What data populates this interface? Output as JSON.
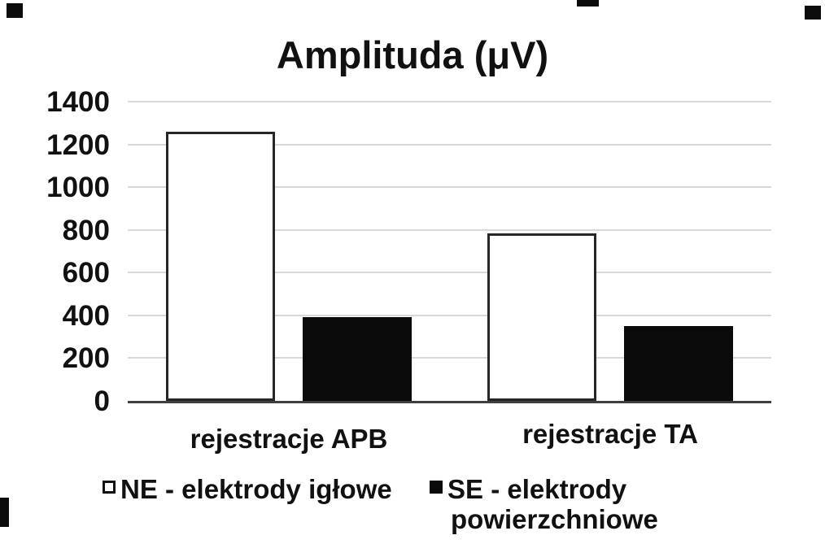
{
  "chart_data": {
    "type": "bar",
    "title": "Amplituda (μV)",
    "categories": [
      "rejestracje APB",
      "rejestracje TA"
    ],
    "series": [
      {
        "name": "NE - elektrody igłowe",
        "fill": "#ffffff",
        "values": [
          1260,
          785
        ]
      },
      {
        "name": "SE - elektrody powierzchniowe",
        "fill": "#0a0a0a",
        "values": [
          390,
          350
        ]
      }
    ],
    "ylim": [
      0,
      1400
    ],
    "yticks": [
      0,
      200,
      400,
      600,
      800,
      1000,
      1200,
      1400
    ],
    "xlabel": "",
    "ylabel": "",
    "grid": true,
    "legend_position": "bottom"
  },
  "legend": {
    "items": [
      {
        "swatch": "outline",
        "lines": [
          "NE - elektrody igłowe"
        ]
      },
      {
        "swatch": "filled",
        "lines": [
          "SE - elektrody",
          "powierzchniowe"
        ]
      }
    ]
  },
  "colors": {
    "background": "#ffffff",
    "text": "#111111",
    "gridline": "#d9d9d9",
    "axis": "#3f3f3f",
    "bar_outline": "#262626",
    "bar_fill_dark": "#0a0a0a",
    "bar_fill_light": "#ffffff"
  }
}
